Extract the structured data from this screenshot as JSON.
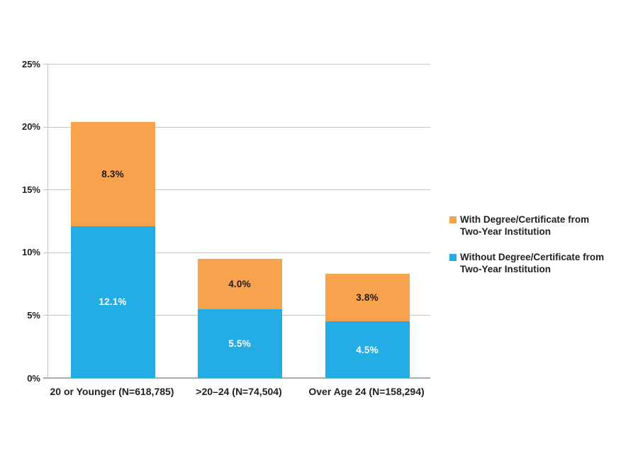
{
  "chart_data": {
    "type": "bar",
    "subtype": "stacked-column",
    "categories": [
      "20 or Younger (N=618,785)",
      ">20–24 (N=74,504)",
      "Over Age 24 (N=158,294)"
    ],
    "series": [
      {
        "id": "without-degree",
        "name": "Without Degree/Certificate from Two-Year Institution",
        "color": "#24ACE4",
        "label_color": "#ffffff",
        "values": [
          12.1,
          5.5,
          4.5
        ],
        "labels": [
          "12.1%",
          "5.5%",
          "4.5%"
        ]
      },
      {
        "id": "with-degree",
        "name": "With Degree/Certificate from Two-Year Institution",
        "color": "#F7A24C",
        "label_color": "#1d1b20",
        "values": [
          8.3,
          4.0,
          3.8
        ],
        "labels": [
          "8.3%",
          "4.0%",
          "3.8%"
        ]
      }
    ],
    "totals": [
      20.4,
      9.5,
      8.3
    ],
    "yticks": [
      "0%",
      "5%",
      "10%",
      "15%",
      "20%",
      "25%"
    ],
    "ylim": [
      0,
      25
    ],
    "grid": true,
    "legend_position": "right",
    "title": "",
    "xlabel": "",
    "ylabel": ""
  },
  "legend": {
    "items": [
      {
        "lines": [
          "With Degree/Certificate from",
          "Two-Year Institution"
        ],
        "color": "#F7A24C",
        "series_id": "with-degree"
      },
      {
        "lines": [
          "Without Degree/Certificate from",
          "Two-Year Institution"
        ],
        "color": "#24ACE4",
        "series_id": "without-degree"
      }
    ]
  },
  "colors": {
    "with_degree_orange": "#F7A24C",
    "without_degree_blue": "#24ACE4",
    "gridline": "#c4c7ca",
    "axis": "#a9acae",
    "text_dark": "#232025",
    "background": "#ffffff"
  }
}
